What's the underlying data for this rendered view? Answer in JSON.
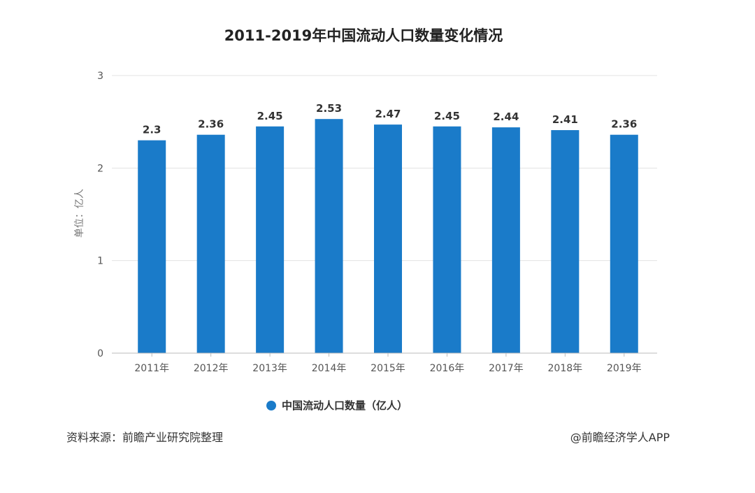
{
  "chart_data": {
    "type": "bar",
    "title": "2011-2019年中国流动人口数量变化情况",
    "ylabel": "单位：亿人",
    "categories": [
      "2011年",
      "2012年",
      "2013年",
      "2014年",
      "2015年",
      "2016年",
      "2017年",
      "2018年",
      "2019年"
    ],
    "series": [
      {
        "name": "中国流动人口数量（亿人）",
        "values": [
          2.3,
          2.36,
          2.45,
          2.53,
          2.47,
          2.45,
          2.44,
          2.41,
          2.36
        ],
        "labels": [
          "2.3",
          "2.36",
          "2.45",
          "2.53",
          "2.47",
          "2.45",
          "2.44",
          "2.41",
          "2.36"
        ]
      }
    ],
    "ylim": [
      0,
      3
    ],
    "yticks": [
      "0",
      "1",
      "2",
      "3"
    ],
    "grid": true,
    "legend": "bottom",
    "colors": {
      "bar": "#1a7bc9",
      "grid": "#e3e3e3",
      "axis": "#bbbbbb"
    }
  },
  "footer": {
    "source": "资料来源：前瞻产业研究院整理",
    "credit": "@前瞻经济学人APP"
  }
}
